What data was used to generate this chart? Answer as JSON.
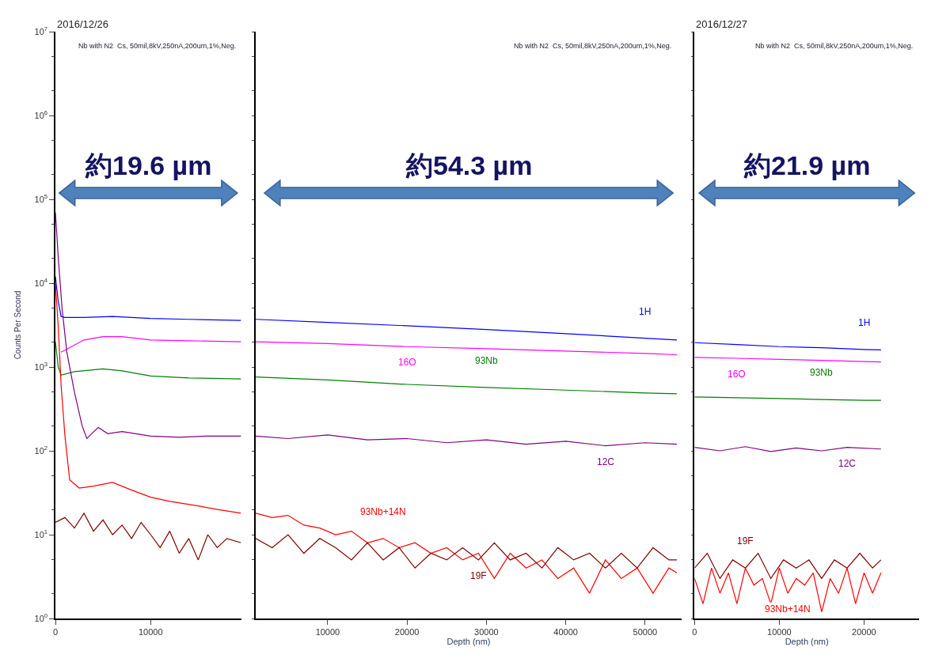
{
  "chart_data": [
    {
      "type": "line",
      "title": "2016/12/26",
      "subtitle": "Nb with N2  Cs, 50mil,8kV,250nA,200um,1%,Neg.",
      "ylabel": "Counts Per Second",
      "log": "y",
      "xlim": [
        0,
        19500
      ],
      "ylim": [
        1,
        10000000
      ],
      "xticks": [
        0,
        10000
      ],
      "yticks": [
        {
          "value": 1,
          "label": "10$^{0}$"
        },
        {
          "value": 10,
          "label": "10$^{1}$"
        },
        {
          "value": 100,
          "label": "10$^{2}$"
        },
        {
          "value": 1000,
          "label": "10$^{3}$"
        },
        {
          "value": 10000,
          "label": "10$^{4}$"
        },
        {
          "value": 100000,
          "label": "10$^{5}$"
        },
        {
          "value": 1000000,
          "label": "10$^{6}$"
        },
        {
          "value": 10000000,
          "label": "10$^{7}$"
        }
      ],
      "annotations": [
        "約19.6 µm"
      ],
      "series": [
        {
          "color": "#0000ff",
          "x": [
            0,
            300,
            600,
            1000,
            3000,
            6000,
            10000,
            14000,
            19500
          ],
          "values": [
            12000,
            6000,
            4000,
            3900,
            3900,
            4000,
            3800,
            3700,
            3600
          ]
        },
        {
          "color": "#ff00ff",
          "x": [
            600,
            1500,
            3000,
            5000,
            7000,
            10000,
            14000,
            19500
          ],
          "values": [
            1500,
            1700,
            2100,
            2300,
            2300,
            2100,
            2050,
            2000
          ]
        },
        {
          "color": "#008000",
          "x": [
            0,
            300,
            600,
            2000,
            5000,
            7000,
            10000,
            14000,
            19500
          ],
          "values": [
            2000,
            1000,
            800,
            880,
            950,
            900,
            780,
            740,
            720
          ]
        },
        {
          "color": "#800080",
          "x": [
            0,
            300,
            700,
            1200,
            2000,
            2800,
            3300,
            3800,
            4500,
            5500,
            7000,
            10000,
            13000,
            16000,
            19500
          ],
          "values": [
            70000,
            20000,
            5000,
            1500,
            500,
            200,
            140,
            160,
            190,
            160,
            170,
            150,
            145,
            150,
            150
          ]
        },
        {
          "color": "#ff0000",
          "x": [
            0,
            300,
            600,
            1000,
            1500,
            2500,
            4000,
            6000,
            8000,
            10000,
            12000,
            15000,
            17000,
            19500
          ],
          "values": [
            10000,
            3000,
            600,
            150,
            45,
            36,
            38,
            42,
            34,
            28,
            25,
            22,
            20,
            18
          ]
        },
        {
          "color": "#800000",
          "x": [
            0,
            1000,
            2000,
            3000,
            4000,
            5000,
            6000,
            7000,
            8000,
            9000,
            10000,
            11000,
            12000,
            13000,
            14000,
            15000,
            16000,
            17000,
            18000,
            19500
          ],
          "values": [
            14,
            16,
            12,
            18,
            11,
            15,
            10,
            13,
            9,
            14,
            10,
            7,
            11,
            6,
            9,
            5,
            10,
            7,
            9,
            8
          ]
        }
      ]
    },
    {
      "type": "line",
      "subtitle": "Nb with N2  Cs, 50mil,8kV,250nA,200um,1%,Neg.",
      "xlabel": "Depth (nm)",
      "log": "y",
      "tick_labels": "x",
      "xlim": [
        940,
        54600
      ],
      "ylim": [
        1,
        10000000
      ],
      "xticks": [
        10000,
        20000,
        30000,
        40000,
        50000
      ],
      "annotations": [
        "約54.3 µm"
      ],
      "series": [
        {
          "name": "1H",
          "color": "#0000ff",
          "x": [
            940,
            10000,
            20000,
            30000,
            40000,
            50000,
            54000
          ],
          "values": [
            3700,
            3400,
            3100,
            2800,
            2500,
            2200,
            2100
          ]
        },
        {
          "name": "16O",
          "color": "#ff00ff",
          "x": [
            940,
            10000,
            20000,
            30000,
            40000,
            50000,
            54000
          ],
          "values": [
            2000,
            1900,
            1750,
            1650,
            1550,
            1450,
            1400
          ]
        },
        {
          "name": "93Nb",
          "color": "#008000",
          "x": [
            940,
            10000,
            20000,
            30000,
            40000,
            50000,
            54000
          ],
          "values": [
            760,
            700,
            620,
            570,
            530,
            490,
            480
          ]
        },
        {
          "name": "12C",
          "color": "#800080",
          "x": [
            940,
            5000,
            10000,
            15000,
            20000,
            25000,
            30000,
            35000,
            40000,
            45000,
            50000,
            54000
          ],
          "values": [
            150,
            140,
            155,
            135,
            140,
            125,
            135,
            120,
            130,
            115,
            125,
            120
          ]
        },
        {
          "name": "93Nb+14N",
          "color": "#ff0000",
          "x": [
            940,
            3000,
            5000,
            7000,
            9000,
            11000,
            13000,
            15000,
            17000,
            19000,
            21000,
            23000,
            25000,
            27000,
            29000,
            31000,
            33000,
            35000,
            37000,
            39000,
            41000,
            43000,
            45000,
            47000,
            49000,
            51000,
            53000,
            54000
          ],
          "values": [
            18,
            16,
            17,
            13,
            12,
            10,
            11,
            8,
            9,
            7,
            8,
            6,
            7,
            5,
            6,
            3,
            6,
            4,
            5,
            3,
            4,
            2,
            5,
            3,
            4,
            2,
            4,
            3.5
          ]
        },
        {
          "name": "19F",
          "color": "#800000",
          "x": [
            940,
            3000,
            5000,
            7000,
            9000,
            11000,
            13000,
            15000,
            17000,
            19000,
            21000,
            23000,
            25000,
            27000,
            29000,
            31000,
            33000,
            35000,
            37000,
            39000,
            41000,
            43000,
            45000,
            47000,
            49000,
            51000,
            53000,
            54000
          ],
          "values": [
            9,
            7,
            10,
            6,
            9,
            7,
            5,
            8,
            5,
            7,
            4,
            6,
            5,
            7,
            5,
            8,
            5,
            6,
            4,
            7,
            5,
            6,
            4,
            6,
            4,
            7,
            5,
            5
          ]
        }
      ]
    },
    {
      "type": "line",
      "title": "2016/12/27",
      "subtitle": "Nb with N2  Cs, 50mil,8kV,250nA,200um,1%,Neg.",
      "xlabel": "Depth (nm)",
      "log": "y",
      "tick_labels": "x",
      "xlim": [
        0,
        26500
      ],
      "ylim": [
        1,
        10000000
      ],
      "xticks": [
        0,
        10000,
        20000
      ],
      "annotations": [
        "約21.9 µm"
      ],
      "series": [
        {
          "name": "1H",
          "color": "#0000ff",
          "x": [
            0,
            5000,
            10000,
            15000,
            20000,
            22000
          ],
          "values": [
            1950,
            1850,
            1750,
            1700,
            1620,
            1600
          ]
        },
        {
          "name": "16O",
          "color": "#ff00ff",
          "x": [
            0,
            5000,
            10000,
            15000,
            20000,
            22000
          ],
          "values": [
            1300,
            1270,
            1230,
            1200,
            1160,
            1150
          ]
        },
        {
          "name": "93Nb",
          "color": "#008000",
          "x": [
            0,
            5000,
            10000,
            15000,
            20000,
            22000
          ],
          "values": [
            440,
            430,
            420,
            410,
            400,
            400
          ]
        },
        {
          "name": "12C",
          "color": "#800080",
          "x": [
            0,
            3000,
            6000,
            9000,
            12000,
            15000,
            18000,
            22000
          ],
          "values": [
            110,
            100,
            112,
            98,
            108,
            100,
            110,
            105
          ]
        },
        {
          "name": "19F",
          "color": "#800000",
          "x": [
            0,
            1500,
            3000,
            4500,
            6000,
            7500,
            9000,
            10500,
            12000,
            13500,
            15000,
            16500,
            18000,
            19500,
            21000,
            22000
          ],
          "values": [
            4,
            6,
            3,
            5,
            4,
            6,
            3,
            5,
            4,
            5,
            3,
            5,
            4,
            6,
            4,
            5
          ]
        },
        {
          "name": "93Nb+14N",
          "color": "#ff0000",
          "x": [
            0,
            1000,
            2000,
            3000,
            4000,
            5000,
            6000,
            7000,
            8000,
            9000,
            10000,
            11000,
            12000,
            13000,
            14000,
            15000,
            16000,
            17000,
            18000,
            19000,
            20000,
            21000,
            22000
          ],
          "values": [
            3,
            1.5,
            4,
            2,
            3.5,
            1.5,
            4,
            2.5,
            3,
            1.5,
            4,
            2,
            3,
            2.5,
            3.5,
            1.2,
            3,
            2,
            4,
            1.5,
            3.5,
            2,
            3.5
          ]
        }
      ]
    }
  ]
}
